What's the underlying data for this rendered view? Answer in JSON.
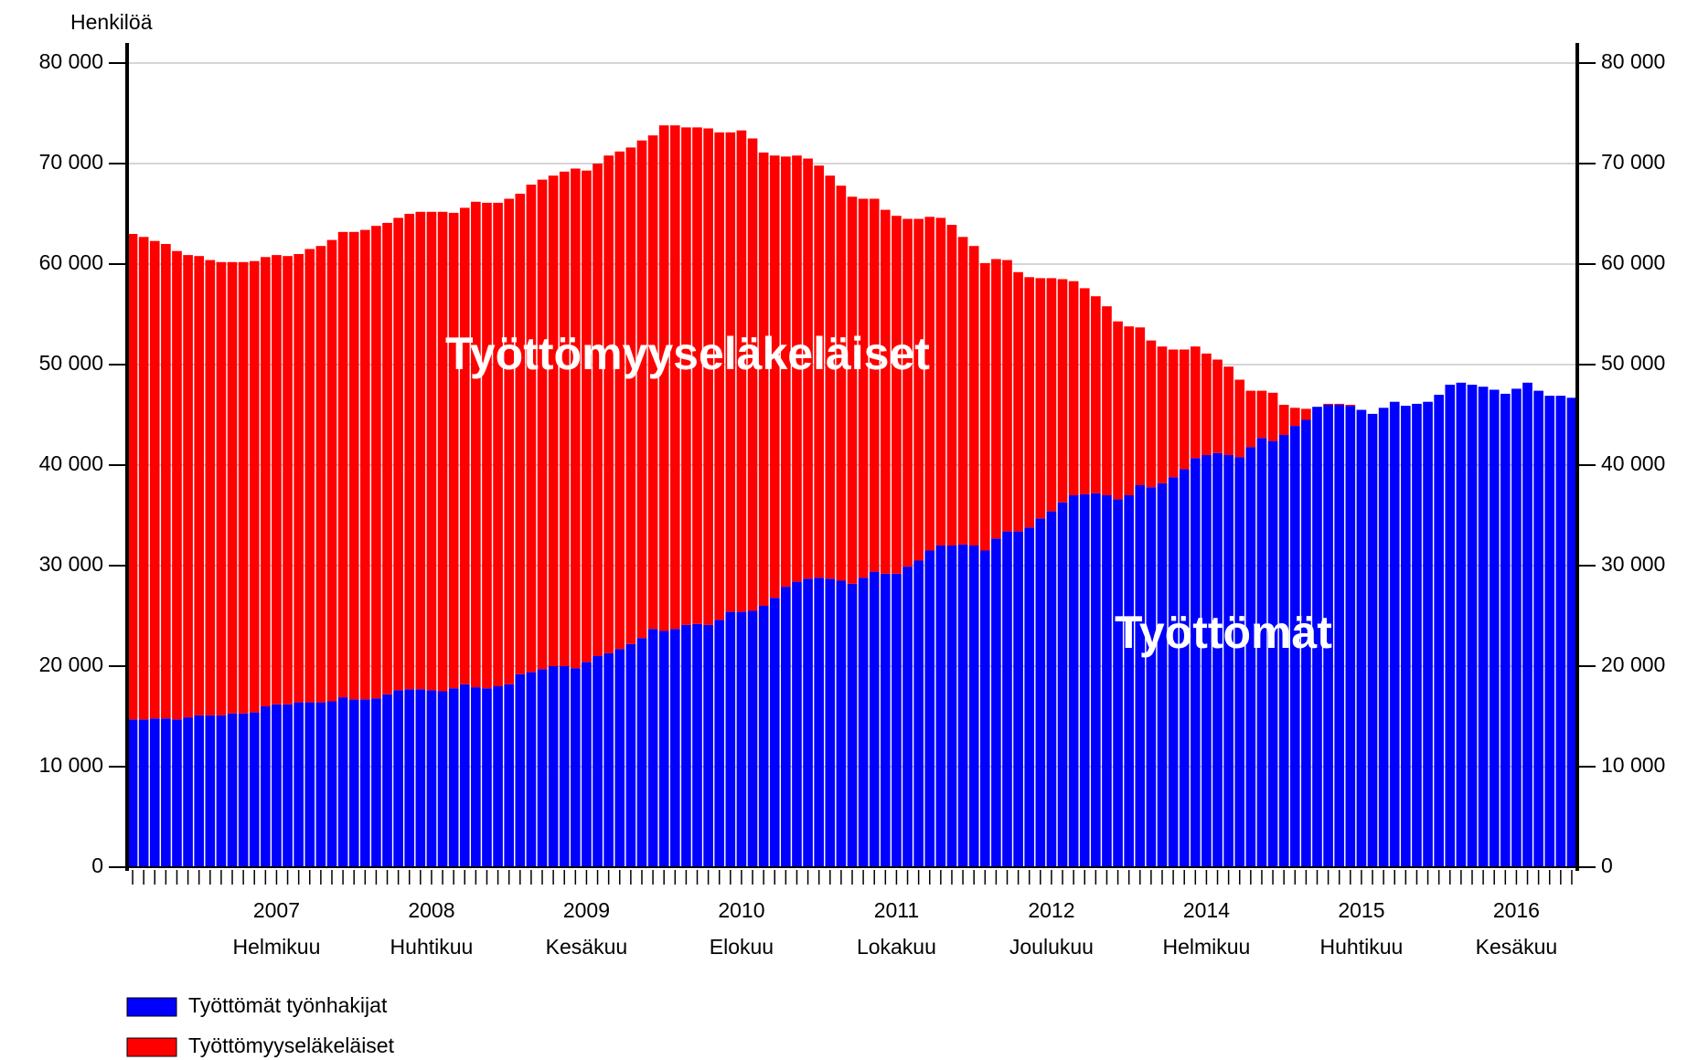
{
  "chart_data": {
    "type": "stacked_bar",
    "y_label": "Henkilöä",
    "annotations": [
      "Työttömyyseläkeläiset",
      "Työttömät"
    ],
    "categories": [
      null,
      null,
      null,
      null,
      null,
      null,
      null,
      null,
      null,
      null,
      null,
      null,
      null,
      [
        "2007",
        "Helmikuu"
      ],
      null,
      null,
      null,
      null,
      null,
      null,
      null,
      null,
      null,
      null,
      null,
      null,
      null,
      [
        "2008",
        "Huhtikuu"
      ],
      null,
      null,
      null,
      null,
      null,
      null,
      null,
      null,
      null,
      null,
      null,
      null,
      null,
      [
        "2009",
        "Kesäkuu"
      ],
      null,
      null,
      null,
      null,
      null,
      null,
      null,
      null,
      null,
      null,
      null,
      null,
      null,
      [
        "2010",
        "Elokuu"
      ],
      null,
      null,
      null,
      null,
      null,
      null,
      null,
      null,
      null,
      null,
      null,
      null,
      null,
      [
        "2011",
        "Lokakuu"
      ],
      null,
      null,
      null,
      null,
      null,
      null,
      null,
      null,
      null,
      null,
      null,
      null,
      null,
      [
        "2012",
        "Joulukuu"
      ],
      null,
      null,
      null,
      null,
      null,
      null,
      null,
      null,
      null,
      null,
      null,
      null,
      null,
      [
        "2014",
        "Helmikuu"
      ],
      null,
      null,
      null,
      null,
      null,
      null,
      null,
      null,
      null,
      null,
      null,
      null,
      null,
      [
        "2015",
        "Huhtikuu"
      ],
      null,
      null,
      null,
      null,
      null,
      null,
      null,
      null,
      null,
      null,
      null,
      null,
      null,
      [
        "2016",
        "Kesäkuu"
      ],
      null,
      null,
      null,
      null,
      null
    ],
    "series": [
      {
        "name": "Työttömät työnhakijat",
        "color": "#0000ff",
        "values": [
          14700,
          14700,
          14800,
          14800,
          14700,
          14900,
          15100,
          15100,
          15100,
          15300,
          15300,
          15400,
          16000,
          16200,
          16200,
          16400,
          16400,
          16400,
          16500,
          16900,
          16700,
          16700,
          16800,
          17200,
          17600,
          17700,
          17700,
          17600,
          17500,
          17800,
          18200,
          17900,
          17800,
          18000,
          18200,
          19200,
          19400,
          19700,
          20000,
          20000,
          19800,
          20400,
          21000,
          21300,
          21700,
          22200,
          22800,
          23700,
          23500,
          23700,
          24100,
          24200,
          24100,
          24600,
          25400,
          25400,
          25500,
          26000,
          26800,
          27900,
          28400,
          28700,
          28800,
          28700,
          28500,
          28200,
          28800,
          29400,
          29200,
          29200,
          29900,
          30500,
          31500,
          32000,
          32000,
          32100,
          32000,
          31500,
          32700,
          33400,
          33400,
          33800,
          34700,
          35400,
          36300,
          37000,
          37100,
          37200,
          37000,
          36600,
          37000,
          38000,
          37800,
          38200,
          38800,
          39600,
          40700,
          41000,
          41200,
          41000,
          40800,
          41800,
          42700,
          42400,
          43000,
          43900,
          44500,
          45800,
          46000,
          46000,
          45900,
          45500,
          45100,
          45700,
          46300,
          45900,
          46100,
          46300,
          47000,
          48000,
          48200,
          48000,
          47800,
          47500,
          47100,
          47600,
          48200,
          47400,
          46900,
          46900,
          46700
        ]
      },
      {
        "name": "Työttömyyseläkeläiset",
        "color": "#ff0000",
        "values": [
          48300,
          48000,
          47500,
          47200,
          46600,
          46000,
          45700,
          45300,
          45100,
          44900,
          44900,
          44900,
          44700,
          44700,
          44600,
          44600,
          45100,
          45400,
          45900,
          46300,
          46500,
          46700,
          47000,
          46900,
          47000,
          47300,
          47500,
          47600,
          47700,
          47300,
          47400,
          48300,
          48300,
          48100,
          48300,
          47800,
          48500,
          48700,
          48800,
          49200,
          49700,
          48900,
          49000,
          49500,
          49500,
          49400,
          49500,
          49100,
          50300,
          50100,
          49500,
          49400,
          49400,
          48500,
          47700,
          47900,
          47000,
          45100,
          44000,
          42800,
          42400,
          41800,
          41000,
          40100,
          39300,
          38500,
          37700,
          37100,
          36200,
          35600,
          34600,
          34000,
          33200,
          32600,
          31900,
          30600,
          29800,
          28600,
          27800,
          27000,
          25800,
          24900,
          23900,
          23200,
          22200,
          21300,
          20500,
          19600,
          18800,
          17700,
          16800,
          15700,
          14600,
          13600,
          12700,
          11900,
          11100,
          10100,
          9300,
          8800,
          7700,
          5600,
          4700,
          4800,
          3000,
          1800,
          1100,
          0,
          100,
          100,
          100,
          0,
          0,
          0,
          0,
          0,
          0,
          0,
          0,
          0,
          0,
          0,
          0,
          0,
          0,
          0,
          0,
          0,
          0,
          0,
          0
        ]
      }
    ],
    "ylim": [
      0,
      80000
    ],
    "yticks": [
      0,
      {
        "value": 10000,
        "label": "10 000"
      },
      {
        "value": 20000,
        "label": "20 000"
      },
      {
        "value": 30000,
        "label": "30 000"
      },
      {
        "value": 40000,
        "label": "40 000"
      },
      {
        "value": 50000,
        "label": "50 000"
      },
      {
        "value": 60000,
        "label": "60 000"
      },
      {
        "value": 70000,
        "label": "70 000"
      },
      {
        "value": 80000,
        "label": "80 000"
      }
    ],
    "y2lim": [
      0,
      80000
    ],
    "y2ticks": [
      0,
      {
        "value": 10000,
        "label": "10 000"
      },
      {
        "value": 20000,
        "label": "20 000"
      },
      {
        "value": 30000,
        "label": "30 000"
      },
      {
        "value": 40000,
        "label": "40 000"
      },
      {
        "value": 50000,
        "label": "50 000"
      },
      {
        "value": 60000,
        "label": "60 000"
      },
      {
        "value": 70000,
        "label": "70 000"
      },
      {
        "value": 80000,
        "label": "80 000"
      }
    ],
    "grid": true,
    "legend": "bottom-left"
  }
}
